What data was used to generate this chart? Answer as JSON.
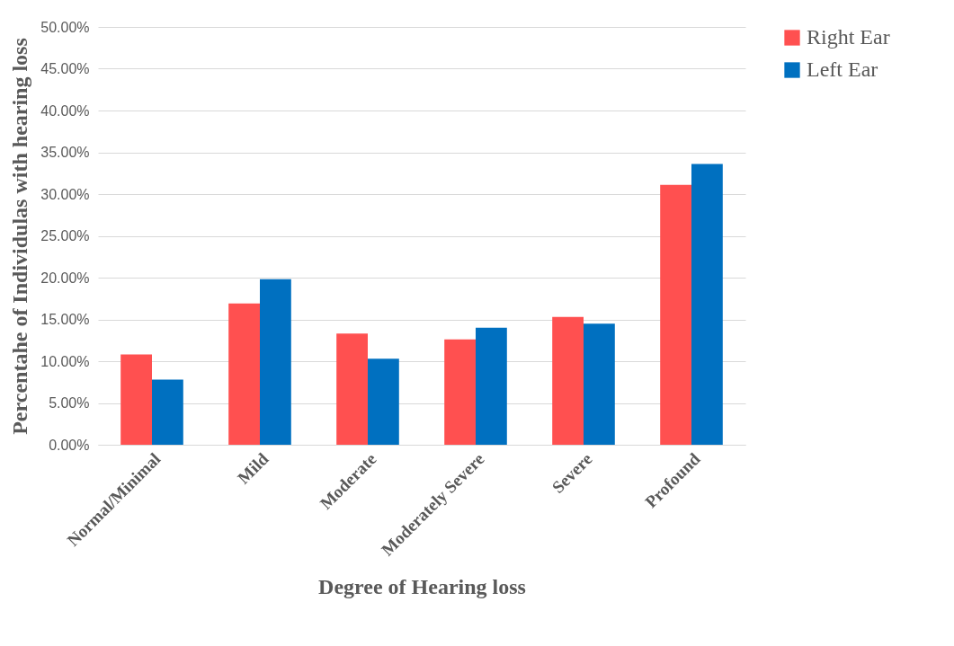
{
  "chart_data": {
    "type": "bar",
    "xlabel": "Degree of Hearing loss",
    "ylabel": "Percentahe of Individulas with hearing loss",
    "categories": [
      "Normal/Minimal",
      "Mild",
      "Moderate",
      "Moderately Severe",
      "Severe",
      "Profound"
    ],
    "series": [
      {
        "name": "Right Ear",
        "color": "#ff5050",
        "values": [
          10.8,
          16.9,
          13.3,
          12.6,
          15.3,
          31.1
        ]
      },
      {
        "name": "Left Ear",
        "color": "#0070c0",
        "values": [
          7.8,
          19.8,
          10.3,
          14.0,
          14.5,
          33.6
        ]
      }
    ],
    "ylim": [
      0,
      50
    ],
    "yticks": [
      {
        "value": 0,
        "label": "0.00%"
      },
      {
        "value": 5,
        "label": "5.00%"
      },
      {
        "value": 10,
        "label": "10.00%"
      },
      {
        "value": 15,
        "label": "15.00%"
      },
      {
        "value": 20,
        "label": "20.00%"
      },
      {
        "value": 25,
        "label": "25.00%"
      },
      {
        "value": 30,
        "label": "30.00%"
      },
      {
        "value": 35,
        "label": "35.00%"
      },
      {
        "value": 40,
        "label": "40.00%"
      },
      {
        "value": 45,
        "label": "45.00%"
      },
      {
        "value": 50,
        "label": "50.00%"
      }
    ],
    "grid": "y",
    "legend": "right"
  }
}
